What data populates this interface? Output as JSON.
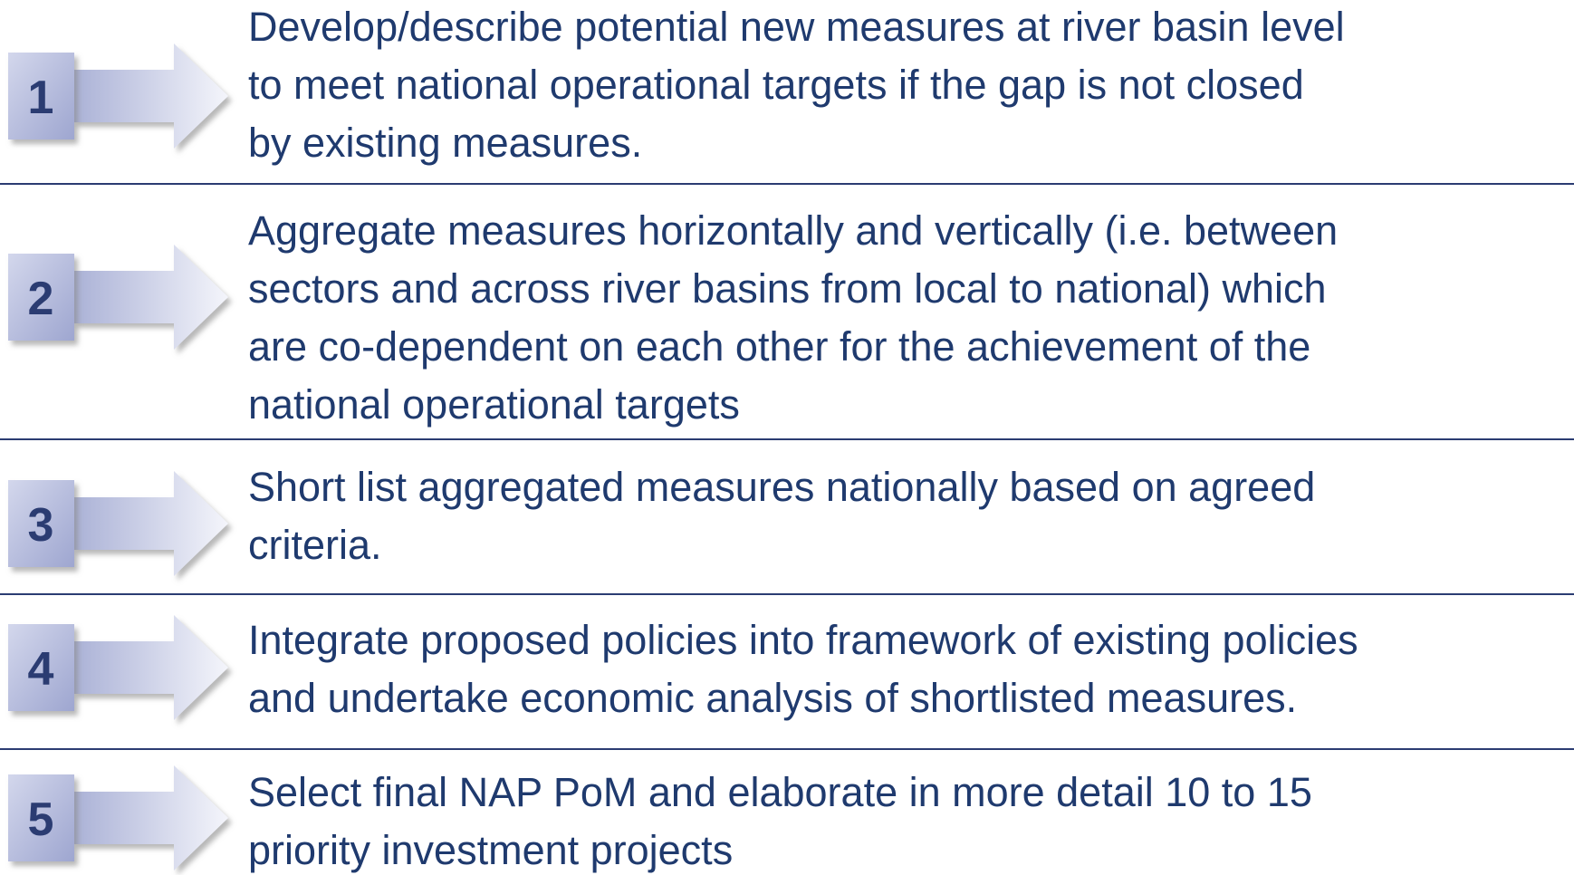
{
  "steps": [
    {
      "number": "1",
      "lines": [
        "Develop/describe potential new measures at river basin level",
        "to meet national operational targets if the gap is not closed",
        "by existing measures."
      ]
    },
    {
      "number": "2",
      "lines": [
        "Aggregate measures horizontally and vertically (i.e. between",
        "sectors and across river basins from local to national) which",
        "are co-dependent on each other for the achievement of the",
        "national operational targets"
      ]
    },
    {
      "number": "3",
      "lines": [
        "Short list aggregated measures nationally based on agreed",
        "criteria."
      ]
    },
    {
      "number": "4",
      "lines": [
        "Integrate proposed policies into framework of existing policies",
        "and undertake economic analysis of shortlisted measures."
      ]
    },
    {
      "number": "5",
      "lines": [
        "Select final NAP PoM and elaborate in more detail 10 to 15",
        "priority investment projects"
      ]
    }
  ]
}
